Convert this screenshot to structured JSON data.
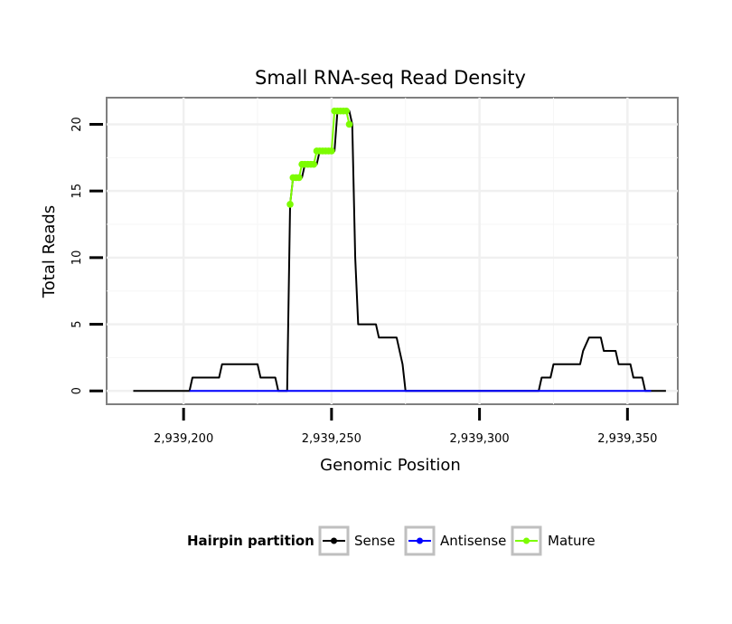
{
  "chart_data": {
    "type": "line",
    "title": "Small RNA-seq Read Density",
    "xlabel": "Genomic Position",
    "ylabel": "Total Reads",
    "xlim": [
      2939174,
      2939367
    ],
    "ylim": [
      -1,
      22
    ],
    "x_ticks": [
      {
        "value": 2939200,
        "label": "2,939,200"
      },
      {
        "value": 2939250,
        "label": "2,939,250"
      },
      {
        "value": 2939300,
        "label": "2,939,300"
      },
      {
        "value": 2939350,
        "label": "2,939,350"
      }
    ],
    "y_ticks": [
      {
        "value": 0,
        "label": "0"
      },
      {
        "value": 5,
        "label": "5"
      },
      {
        "value": 10,
        "label": "10"
      },
      {
        "value": 15,
        "label": "15"
      },
      {
        "value": 20,
        "label": "20"
      }
    ],
    "grid": true,
    "legend": {
      "title": "Hairpin partition",
      "position": "bottom",
      "entries": [
        {
          "name": "Sense",
          "color": "#000000"
        },
        {
          "name": "Antisense",
          "color": "#0000ff"
        },
        {
          "name": "Mature",
          "color": "#7cfc00"
        }
      ]
    },
    "series": [
      {
        "name": "Sense",
        "color": "#000000",
        "points": [
          [
            2939183,
            0
          ],
          [
            2939202,
            0
          ],
          [
            2939203,
            1
          ],
          [
            2939212,
            1
          ],
          [
            2939213,
            2
          ],
          [
            2939225,
            2
          ],
          [
            2939226,
            1
          ],
          [
            2939231,
            1
          ],
          [
            2939232,
            0
          ],
          [
            2939235,
            0
          ],
          [
            2939236,
            14
          ],
          [
            2939237,
            16
          ],
          [
            2939240,
            16
          ],
          [
            2939241,
            17
          ],
          [
            2939245,
            17
          ],
          [
            2939246,
            18
          ],
          [
            2939251,
            18
          ],
          [
            2939252,
            21
          ],
          [
            2939256,
            21
          ],
          [
            2939257,
            20
          ],
          [
            2939258,
            10
          ],
          [
            2939259,
            5
          ],
          [
            2939265,
            5
          ],
          [
            2939266,
            4
          ],
          [
            2939272,
            4
          ],
          [
            2939273,
            3
          ],
          [
            2939274,
            2
          ],
          [
            2939275,
            0
          ],
          [
            2939320,
            0
          ],
          [
            2939321,
            1
          ],
          [
            2939324,
            1
          ],
          [
            2939325,
            2
          ],
          [
            2939334,
            2
          ],
          [
            2939335,
            3
          ],
          [
            2939337,
            4
          ],
          [
            2939341,
            4
          ],
          [
            2939342,
            3
          ],
          [
            2939346,
            3
          ],
          [
            2939347,
            2
          ],
          [
            2939351,
            2
          ],
          [
            2939352,
            1
          ],
          [
            2939355,
            1
          ],
          [
            2939356,
            0
          ],
          [
            2939363,
            0
          ]
        ]
      },
      {
        "name": "Antisense",
        "color": "#0000ff",
        "points": [
          [
            2939202,
            0
          ],
          [
            2939235,
            0
          ],
          [
            2939275,
            0
          ],
          [
            2939320,
            0
          ],
          [
            2939358,
            0
          ]
        ]
      },
      {
        "name": "Mature",
        "color": "#7cfc00",
        "points": [
          [
            2939236,
            14
          ],
          [
            2939237,
            16
          ],
          [
            2939238,
            16
          ],
          [
            2939239,
            16
          ],
          [
            2939240,
            17
          ],
          [
            2939241,
            17
          ],
          [
            2939242,
            17
          ],
          [
            2939243,
            17
          ],
          [
            2939244,
            17
          ],
          [
            2939245,
            18
          ],
          [
            2939246,
            18
          ],
          [
            2939247,
            18
          ],
          [
            2939248,
            18
          ],
          [
            2939249,
            18
          ],
          [
            2939250,
            18
          ],
          [
            2939251,
            21
          ],
          [
            2939252,
            21
          ],
          [
            2939253,
            21
          ],
          [
            2939254,
            21
          ],
          [
            2939255,
            21
          ],
          [
            2939256,
            20
          ]
        ]
      }
    ]
  }
}
